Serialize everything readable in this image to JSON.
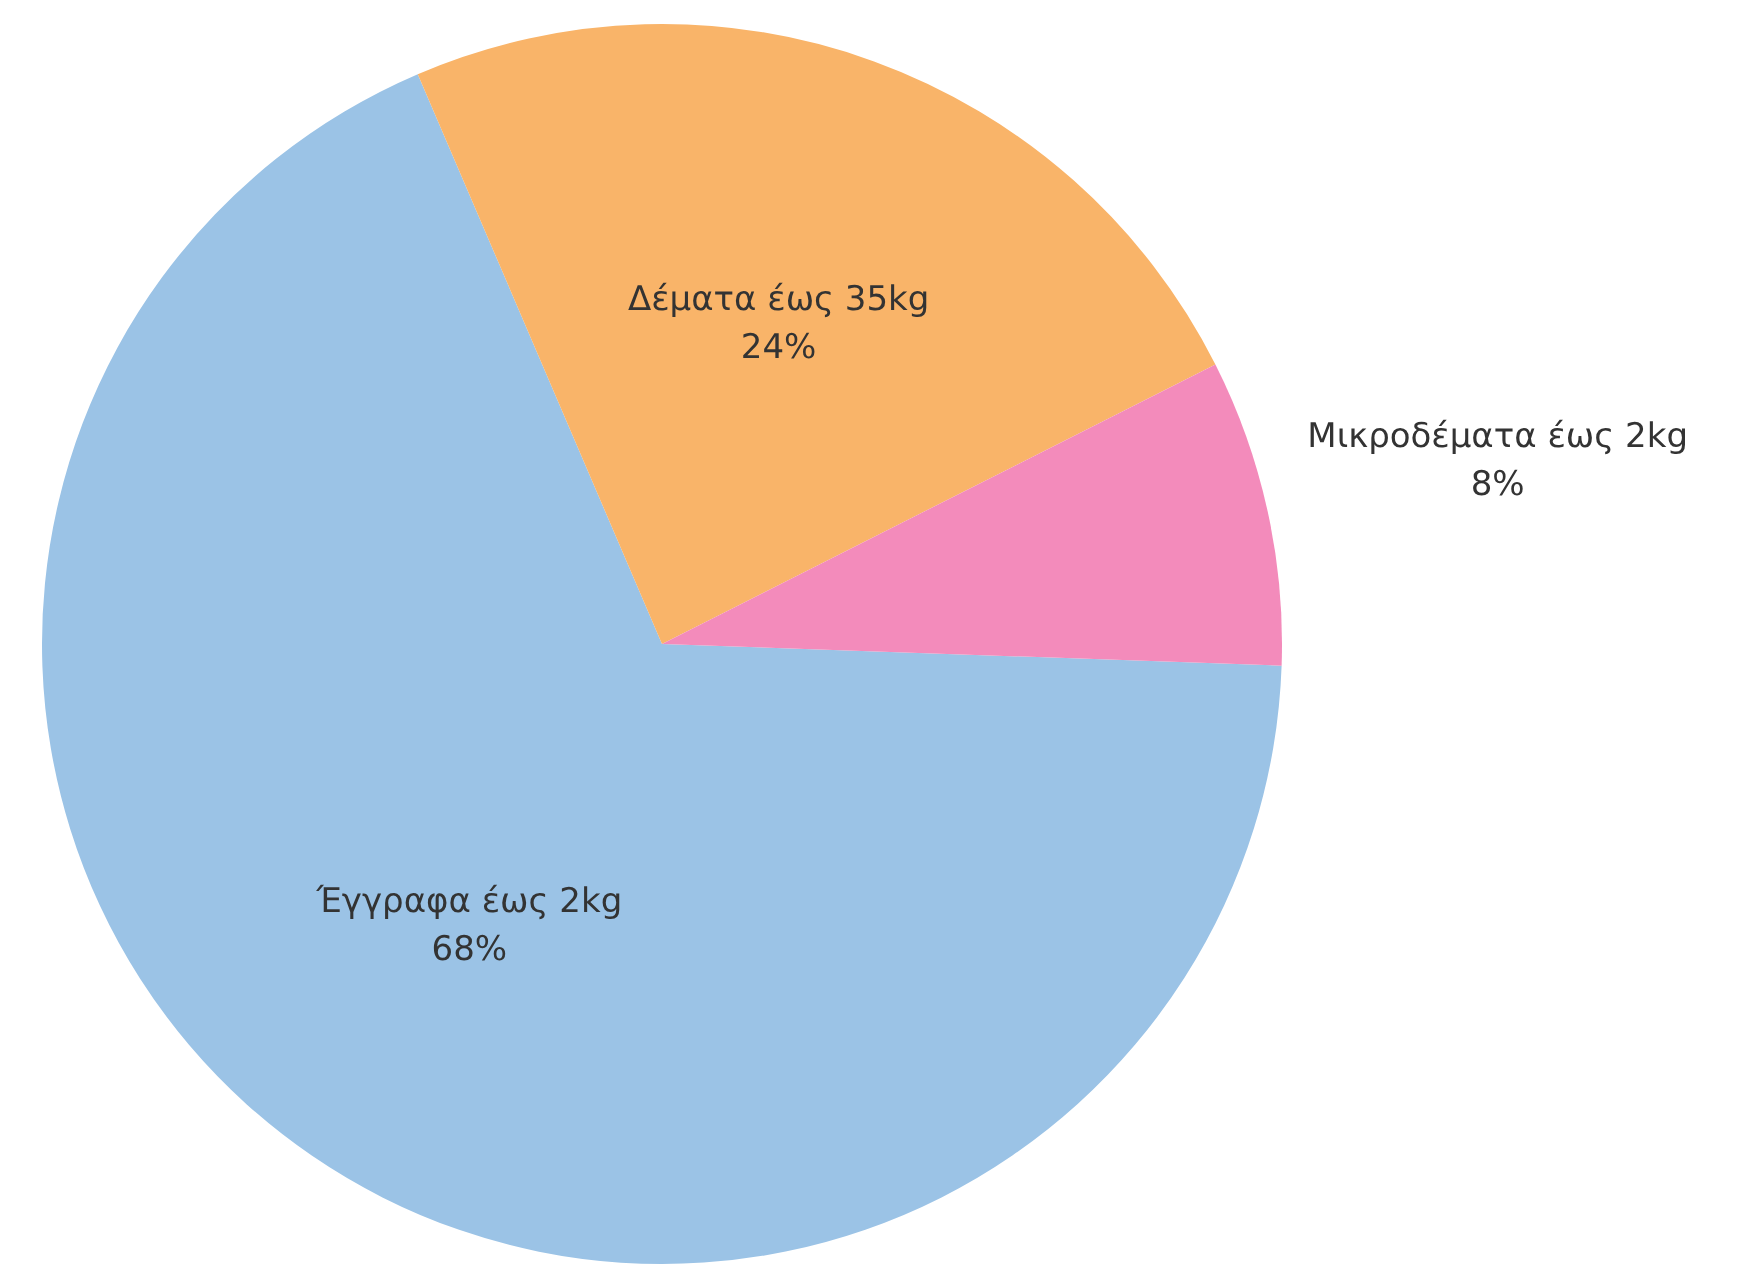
{
  "chart_data": {
    "type": "pie",
    "categories": [
      "Έγγραφα έως 2kg",
      "Δέματα έως 35kg",
      "Μικροδέματα έως 2kg"
    ],
    "values": [
      68,
      24,
      8
    ],
    "colors": [
      "#9bc3e6",
      "#f9b469",
      "#f38bbb"
    ],
    "value_labels": [
      "68%",
      "24%",
      "8%"
    ],
    "legend": false
  }
}
